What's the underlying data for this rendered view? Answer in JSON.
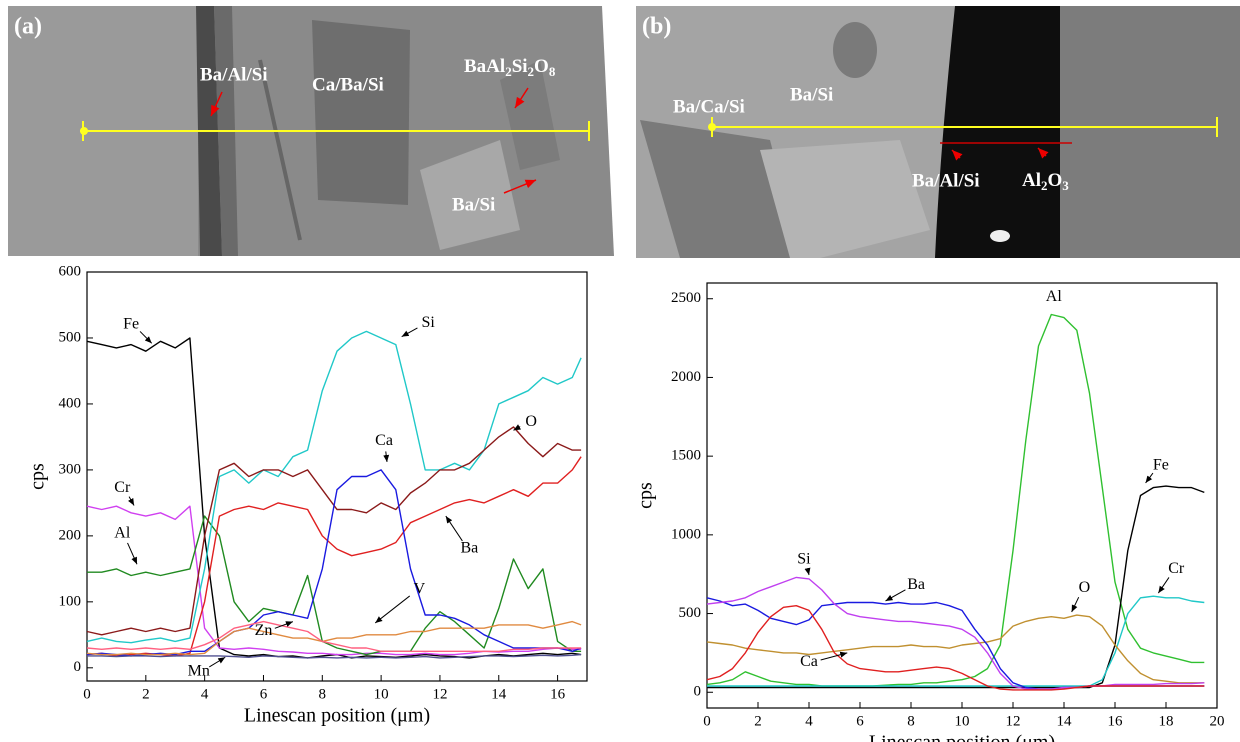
{
  "images": [
    {
      "label": "(a)",
      "annotations": [
        "Ba/Al/Si",
        "Ca/Ba/Si",
        "BaAl2Si2O8",
        "Ba/Si"
      ]
    },
    {
      "label": "(b)",
      "annotations": [
        "Ba/Ca/Si",
        "Ba/Si",
        "Ba/Al/Si",
        "Al2O3"
      ]
    }
  ],
  "chart_data": [
    {
      "type": "line",
      "xlabel": "Linescan position (μm)",
      "ylabel": "cps",
      "x": [
        0,
        0.5,
        1,
        1.5,
        2,
        2.5,
        3,
        3.5,
        4,
        4.5,
        5,
        5.5,
        6,
        6.5,
        7,
        7.5,
        8,
        8.5,
        9,
        9.5,
        10,
        10.5,
        11,
        11.5,
        12,
        12.5,
        13,
        13.5,
        14,
        14.5,
        15,
        15.5,
        16,
        16.5,
        16.8
      ],
      "xlim": [
        0,
        17
      ],
      "xticks": [
        0,
        2,
        4,
        6,
        8,
        10,
        12,
        14,
        16
      ],
      "ylim": [
        -20,
        600
      ],
      "yticks": [
        0,
        100,
        200,
        300,
        400,
        500,
        600
      ],
      "series": [
        {
          "name": "Fe",
          "color": "#000000",
          "values": [
            495,
            490,
            485,
            490,
            480,
            495,
            485,
            500,
            200,
            30,
            20,
            18,
            20,
            17,
            18,
            15,
            18,
            20,
            15,
            18,
            17,
            16,
            18,
            20,
            18,
            17,
            15,
            18,
            20,
            18,
            20,
            22,
            20,
            22,
            20
          ]
        },
        {
          "name": "Cr",
          "color": "#d040f0",
          "values": [
            245,
            240,
            245,
            235,
            230,
            235,
            225,
            245,
            60,
            30,
            28,
            30,
            28,
            25,
            24,
            22,
            22,
            20,
            20,
            22,
            22,
            20,
            20,
            22,
            20,
            20,
            22,
            25,
            24,
            25,
            25,
            28,
            30,
            28,
            28
          ]
        },
        {
          "name": "Al",
          "color": "#208a20",
          "values": [
            145,
            145,
            150,
            140,
            145,
            140,
            145,
            150,
            230,
            200,
            100,
            70,
            90,
            85,
            80,
            140,
            40,
            30,
            25,
            20,
            25,
            25,
            25,
            60,
            85,
            70,
            50,
            30,
            90,
            165,
            120,
            150,
            40,
            25,
            25
          ]
        },
        {
          "name": "Si",
          "color": "#20c8c8",
          "values": [
            40,
            45,
            40,
            38,
            42,
            45,
            40,
            45,
            150,
            290,
            300,
            280,
            300,
            290,
            320,
            330,
            420,
            480,
            500,
            510,
            500,
            490,
            400,
            300,
            300,
            310,
            300,
            330,
            400,
            410,
            420,
            440,
            430,
            440,
            470
          ]
        },
        {
          "name": "O",
          "color": "#8b1a1a",
          "values": [
            55,
            50,
            55,
            60,
            55,
            60,
            55,
            60,
            200,
            300,
            310,
            290,
            300,
            300,
            290,
            300,
            270,
            240,
            240,
            235,
            250,
            240,
            265,
            280,
            300,
            300,
            310,
            330,
            350,
            365,
            340,
            320,
            340,
            330,
            330
          ]
        },
        {
          "name": "Ba",
          "color": "#e02020",
          "values": [
            20,
            22,
            18,
            20,
            22,
            20,
            18,
            22,
            100,
            230,
            240,
            245,
            240,
            250,
            245,
            240,
            200,
            180,
            170,
            175,
            180,
            190,
            220,
            230,
            240,
            250,
            255,
            250,
            260,
            270,
            260,
            280,
            280,
            300,
            320
          ]
        },
        {
          "name": "Ca",
          "color": "#1a1ae0",
          "values": [
            20,
            22,
            20,
            18,
            20,
            22,
            20,
            25,
            25,
            40,
            55,
            60,
            80,
            85,
            80,
            75,
            150,
            270,
            290,
            290,
            300,
            270,
            150,
            80,
            80,
            75,
            65,
            50,
            40,
            30,
            30,
            30,
            30,
            25,
            30
          ]
        },
        {
          "name": "V",
          "color": "#e08a40",
          "values": [
            22,
            20,
            20,
            22,
            20,
            20,
            22,
            20,
            22,
            40,
            55,
            60,
            55,
            50,
            45,
            45,
            40,
            45,
            45,
            50,
            50,
            50,
            55,
            55,
            60,
            60,
            60,
            60,
            65,
            65,
            65,
            60,
            65,
            70,
            65
          ]
        },
        {
          "name": "Zn",
          "color": "#ff6080",
          "values": [
            30,
            28,
            30,
            28,
            30,
            28,
            30,
            28,
            35,
            45,
            60,
            65,
            70,
            65,
            60,
            55,
            40,
            35,
            30,
            30,
            25,
            25,
            25,
            25,
            25,
            25,
            25,
            25,
            25,
            28,
            28,
            30,
            30,
            30,
            30
          ]
        },
        {
          "name": "Mn",
          "color": "#505090",
          "values": [
            18,
            18,
            17,
            18,
            18,
            17,
            18,
            18,
            18,
            18,
            17,
            16,
            18,
            17,
            16,
            15,
            16,
            15,
            16,
            15,
            16,
            15,
            16,
            17,
            15,
            16,
            17,
            18,
            18,
            17,
            18,
            19,
            18,
            19,
            20
          ]
        }
      ]
    },
    {
      "type": "line",
      "xlabel": "Linescan position (μm)",
      "ylabel": "cps",
      "x": [
        0,
        0.5,
        1,
        1.5,
        2,
        2.5,
        3,
        3.5,
        4,
        4.5,
        5,
        5.5,
        6,
        6.5,
        7,
        7.5,
        8,
        8.5,
        9,
        9.5,
        10,
        10.5,
        11,
        11.5,
        12,
        12.5,
        13,
        13.5,
        14,
        14.5,
        15,
        15.5,
        16,
        16.5,
        17,
        17.5,
        18,
        18.5,
        19,
        19.5
      ],
      "xlim": [
        0,
        20
      ],
      "xticks": [
        0,
        2,
        4,
        6,
        8,
        10,
        12,
        14,
        16,
        18,
        20
      ],
      "ylim": [
        -100,
        2600
      ],
      "yticks": [
        0,
        500,
        1000,
        1500,
        2000,
        2500
      ],
      "series": [
        {
          "name": "Al",
          "color": "#30c030",
          "values": [
            50,
            60,
            80,
            130,
            100,
            70,
            60,
            50,
            50,
            40,
            40,
            40,
            40,
            40,
            45,
            50,
            50,
            60,
            60,
            70,
            80,
            100,
            150,
            300,
            900,
            1600,
            2200,
            2400,
            2380,
            2300,
            1900,
            1300,
            700,
            400,
            280,
            250,
            230,
            210,
            190,
            190
          ]
        },
        {
          "name": "Fe",
          "color": "#000000",
          "values": [
            30,
            30,
            30,
            30,
            30,
            30,
            30,
            30,
            30,
            30,
            30,
            30,
            30,
            30,
            30,
            30,
            30,
            30,
            30,
            30,
            30,
            30,
            30,
            30,
            30,
            30,
            30,
            30,
            30,
            30,
            30,
            60,
            300,
            900,
            1250,
            1300,
            1310,
            1300,
            1300,
            1270
          ]
        },
        {
          "name": "Cr",
          "color": "#20c8c8",
          "values": [
            40,
            40,
            40,
            40,
            40,
            40,
            40,
            40,
            40,
            40,
            40,
            40,
            40,
            40,
            40,
            40,
            40,
            40,
            40,
            40,
            40,
            40,
            40,
            40,
            40,
            40,
            40,
            40,
            40,
            40,
            40,
            80,
            250,
            500,
            600,
            610,
            600,
            600,
            580,
            570
          ]
        },
        {
          "name": "O",
          "color": "#c09030",
          "values": [
            320,
            310,
            300,
            280,
            270,
            260,
            250,
            250,
            240,
            250,
            260,
            270,
            280,
            290,
            290,
            290,
            300,
            290,
            290,
            280,
            300,
            310,
            320,
            340,
            420,
            450,
            470,
            480,
            470,
            490,
            480,
            420,
            300,
            200,
            120,
            80,
            70,
            60,
            60,
            60
          ]
        },
        {
          "name": "Ba",
          "color": "#1a1ae0",
          "values": [
            600,
            580,
            550,
            560,
            520,
            470,
            450,
            430,
            460,
            550,
            560,
            570,
            570,
            570,
            560,
            570,
            560,
            560,
            570,
            550,
            520,
            400,
            300,
            150,
            60,
            30,
            20,
            20,
            30,
            30,
            40,
            40,
            40,
            40,
            40,
            40,
            40,
            40,
            40,
            40
          ]
        },
        {
          "name": "Si",
          "color": "#c040f0",
          "values": [
            560,
            570,
            580,
            600,
            640,
            670,
            700,
            730,
            720,
            650,
            560,
            500,
            480,
            470,
            460,
            450,
            450,
            440,
            430,
            420,
            400,
            350,
            250,
            120,
            40,
            20,
            20,
            20,
            30,
            30,
            40,
            40,
            50,
            50,
            50,
            50,
            55,
            55,
            55,
            60
          ]
        },
        {
          "name": "Ca",
          "color": "#e02020",
          "values": [
            80,
            100,
            150,
            250,
            380,
            480,
            540,
            550,
            520,
            400,
            250,
            180,
            150,
            140,
            130,
            130,
            140,
            150,
            160,
            150,
            120,
            80,
            40,
            20,
            15,
            15,
            15,
            15,
            20,
            30,
            40,
            40,
            40,
            40,
            40,
            40,
            40,
            40,
            40,
            40
          ]
        }
      ]
    }
  ]
}
